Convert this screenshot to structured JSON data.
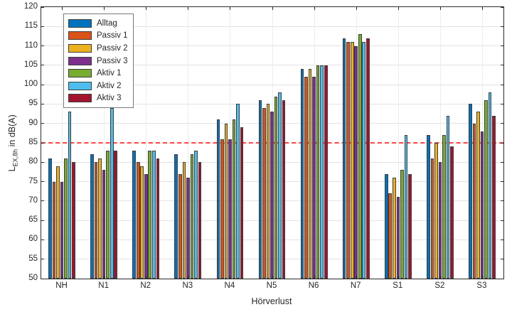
{
  "chart_data": {
    "type": "bar",
    "title": "",
    "xlabel": "Hörverlust",
    "ylabel": {
      "prefix": "L",
      "subscript": "EX,8h",
      "suffix": " in dB(A)"
    },
    "ylim": [
      50,
      120
    ],
    "ytick_step": 5,
    "grid": true,
    "legend_position": "top-left",
    "categories": [
      "NH",
      "N1",
      "N2",
      "N3",
      "N4",
      "N5",
      "N6",
      "N7",
      "S1",
      "S2",
      "S3"
    ],
    "series": [
      {
        "name": "Alltag",
        "color": "#0072BD",
        "values": [
          81,
          82,
          83,
          82,
          91,
          96,
          104,
          112,
          77,
          87,
          95
        ]
      },
      {
        "name": "Passiv 1",
        "color": "#D95319",
        "values": [
          75,
          80,
          80,
          77,
          86,
          94,
          102,
          111,
          72,
          81,
          90
        ]
      },
      {
        "name": "Passiv 2",
        "color": "#EDB120",
        "values": [
          79,
          81,
          79,
          80,
          90,
          95,
          104,
          111,
          76,
          85,
          93
        ]
      },
      {
        "name": "Passiv 3",
        "color": "#7E2F8E",
        "values": [
          75,
          78,
          77,
          76,
          86,
          93,
          102,
          110,
          71,
          80,
          88
        ]
      },
      {
        "name": "Aktiv 1",
        "color": "#77AC30",
        "values": [
          81,
          83,
          83,
          82,
          91,
          97,
          105,
          113,
          78,
          87,
          96
        ]
      },
      {
        "name": "Aktiv 2",
        "color": "#4DBEEE",
        "values": [
          93,
          94,
          83,
          83,
          95,
          98,
          105,
          111,
          87,
          92,
          98
        ]
      },
      {
        "name": "Aktiv 3",
        "color": "#A2142F",
        "values": [
          80,
          83,
          81,
          80,
          89,
          96,
          105,
          112,
          77,
          84,
          92
        ]
      }
    ],
    "threshold_line": {
      "value": 85,
      "color": "#ff4545",
      "style": "dashed"
    }
  }
}
